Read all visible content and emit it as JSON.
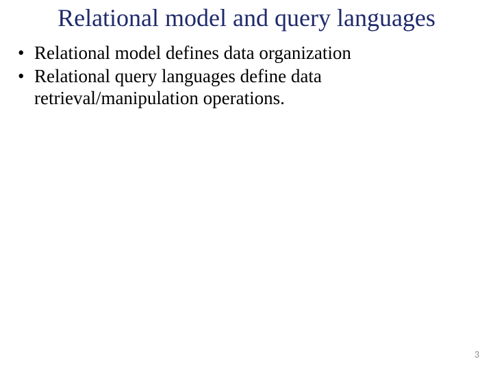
{
  "slide": {
    "title": "Relational model and query languages",
    "title_color": "#1f2a6b",
    "title_fontsize": 36,
    "body_color": "#000000",
    "body_fontsize": 27,
    "background_color": "#ffffff",
    "bullets": [
      "Relational model defines data organization",
      "Relational query languages define data retrieval/manipulation operations."
    ],
    "page_number": "3",
    "page_number_color": "#8a8a8a"
  }
}
